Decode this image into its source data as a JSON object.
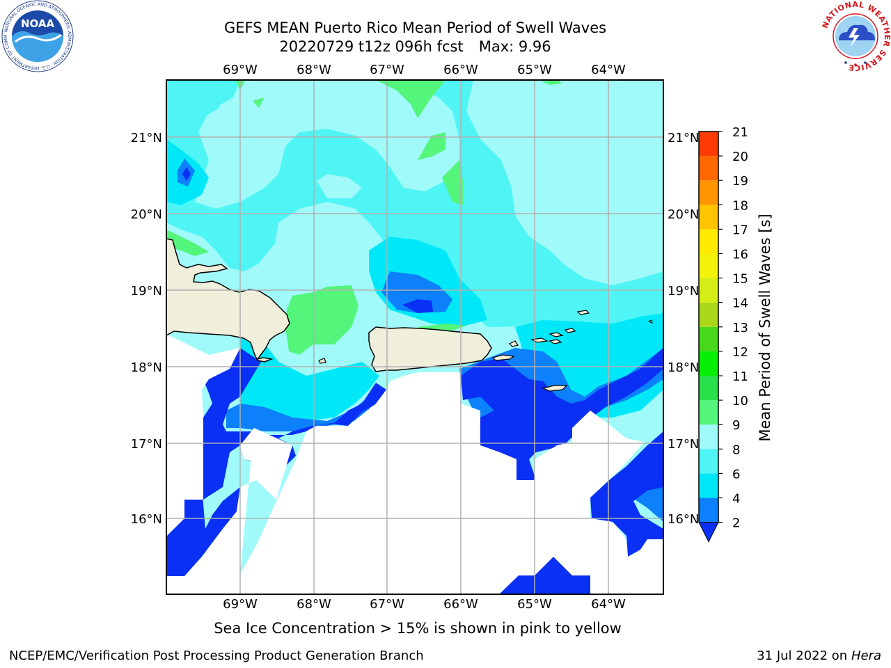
{
  "header": {
    "title_line1": "GEFS MEAN Puerto Rico Mean Period of Swell Waves",
    "run_label": "20220729 t12z 096h fcst",
    "max_label": "Max: 9.96"
  },
  "logos": {
    "noaa": {
      "text": "NOAA",
      "ring_text": "NATIONAL OCEANIC AND ATMOSPHERIC ADMINISTRATION · U.S. DEPARTMENT OF COMMERCE",
      "icon": "noaa-logo-icon"
    },
    "nws": {
      "ring_text": "NATIONAL WEATHER SERVICE",
      "icon": "nws-logo-icon"
    }
  },
  "map": {
    "lon_labels": [
      "69°W",
      "68°W",
      "67°W",
      "66°W",
      "65°W",
      "64°W"
    ],
    "lat_labels": [
      "21°N",
      "20°N",
      "19°N",
      "18°N",
      "17°N",
      "16°N"
    ],
    "colors": {
      "water_white": "#ffffff",
      "land": "#efefdc",
      "grid": "#b0b0b0"
    }
  },
  "colorbar": {
    "label": "Mean Period of Swell Waves [s]",
    "ticks": [
      "2",
      "4",
      "6",
      "8",
      "9",
      "10",
      "11",
      "12",
      "13",
      "14",
      "15",
      "16",
      "17",
      "18",
      "19",
      "20",
      "21"
    ],
    "colors": [
      "#0a2ff5",
      "#0d80fb",
      "#00e8f7",
      "#4ff5f5",
      "#a0fafa",
      "#53f57a",
      "#29e04a",
      "#06f006",
      "#47d71d",
      "#aad719",
      "#d6ee17",
      "#f3f20b",
      "#ffea00",
      "#ffc400",
      "#ff9500",
      "#ff6700",
      "#ff3b05",
      "#ff0900"
    ]
  },
  "subtitle": "Sea Ice Concentration > 15% is shown in pink to yellow",
  "footer": {
    "left": "NCEP/EMC/Verification Post Processing Product Generation Branch",
    "date": "31 Jul 2022 on ",
    "host": "Hera"
  }
}
